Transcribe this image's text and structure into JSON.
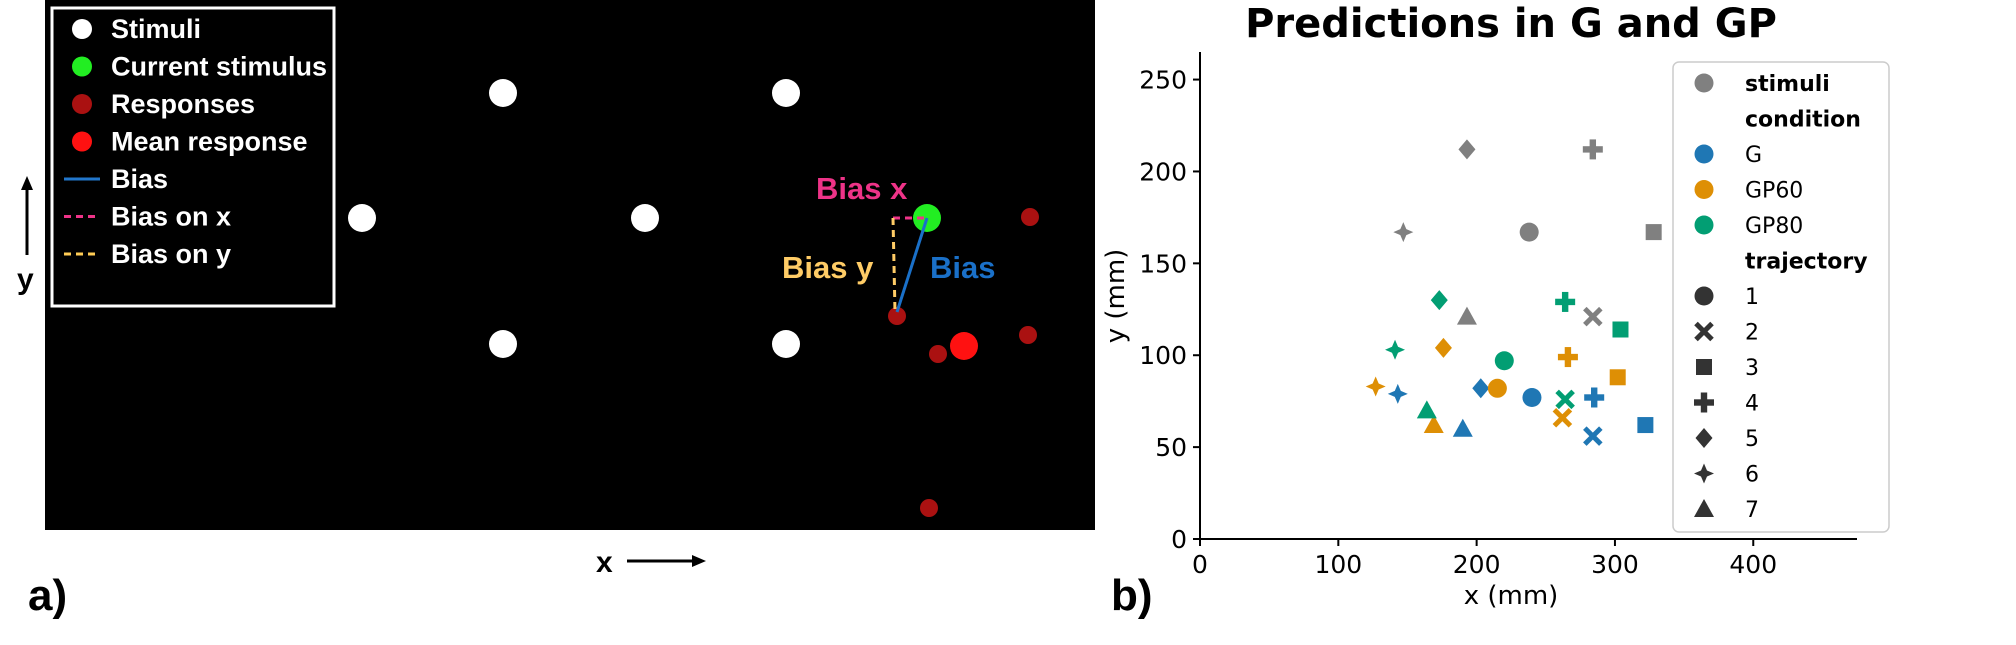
{
  "panel_a": {
    "label": "a)",
    "legend": [
      {
        "label": "Stimuli",
        "kind": "dot",
        "color": "#ffffff"
      },
      {
        "label": "Current stimulus",
        "kind": "dot",
        "color": "#22ee22"
      },
      {
        "label": "Responses",
        "kind": "dot",
        "color": "#aa1111"
      },
      {
        "label": "Mean response",
        "kind": "dot",
        "color": "#ff1111"
      },
      {
        "label": "Bias",
        "kind": "line",
        "color": "#2277cc"
      },
      {
        "label": "Bias on x",
        "kind": "dash",
        "color": "#ee3388"
      },
      {
        "label": "Bias on y",
        "kind": "dash",
        "color": "#ffcc55"
      }
    ],
    "annotations": {
      "bias_x": "Bias x",
      "bias_y": "Bias y",
      "bias": "Bias"
    },
    "axis_x": "x",
    "axis_y": "y",
    "colors": {
      "background": "#000000",
      "bias_x": "#ee3388",
      "bias_y": "#ffcc66",
      "bias": "#1a70c8"
    }
  },
  "panel_b": {
    "label": "b)"
  },
  "chart_data": {
    "type": "scatter",
    "title": "Predictions in G and GP",
    "xlabel": "x (mm)",
    "ylabel": "y (mm)",
    "xlim": [
      0,
      475
    ],
    "ylim": [
      0,
      265
    ],
    "xticks": [
      0,
      100,
      200,
      300,
      400
    ],
    "yticks": [
      0,
      50,
      100,
      150,
      200,
      250
    ],
    "grid": false,
    "legend_position": "top-right",
    "legend": {
      "stimuli_header": "stimuli",
      "condition_header": "condition",
      "conditions": [
        {
          "name": "G",
          "color": "#1f77b4"
        },
        {
          "name": "GP60",
          "color": "#de8f05"
        },
        {
          "name": "GP80",
          "color": "#029e73"
        }
      ],
      "stimuli_color": "#808080",
      "trajectory_header": "trajectory",
      "trajectories": [
        {
          "name": "1",
          "marker": "circle"
        },
        {
          "name": "2",
          "marker": "x"
        },
        {
          "name": "3",
          "marker": "square"
        },
        {
          "name": "4",
          "marker": "plus"
        },
        {
          "name": "5",
          "marker": "diamond"
        },
        {
          "name": "6",
          "marker": "star4"
        },
        {
          "name": "7",
          "marker": "triangle"
        }
      ]
    },
    "series": [
      {
        "group": "stimuli",
        "points": [
          {
            "trajectory": "1",
            "x": 238,
            "y": 167
          },
          {
            "trajectory": "2",
            "x": 284,
            "y": 121
          },
          {
            "trajectory": "3",
            "x": 328,
            "y": 167
          },
          {
            "trajectory": "4",
            "x": 284,
            "y": 212
          },
          {
            "trajectory": "5",
            "x": 193,
            "y": 212
          },
          {
            "trajectory": "6",
            "x": 147,
            "y": 167
          },
          {
            "trajectory": "7",
            "x": 193,
            "y": 121
          }
        ]
      },
      {
        "group": "G",
        "points": [
          {
            "trajectory": "1",
            "x": 240,
            "y": 77
          },
          {
            "trajectory": "2",
            "x": 284,
            "y": 56
          },
          {
            "trajectory": "3",
            "x": 322,
            "y": 62
          },
          {
            "trajectory": "4",
            "x": 285,
            "y": 77
          },
          {
            "trajectory": "5",
            "x": 203,
            "y": 82
          },
          {
            "trajectory": "6",
            "x": 143,
            "y": 79
          },
          {
            "trajectory": "7",
            "x": 190,
            "y": 60
          }
        ]
      },
      {
        "group": "GP60",
        "points": [
          {
            "trajectory": "1",
            "x": 215,
            "y": 82
          },
          {
            "trajectory": "2",
            "x": 262,
            "y": 66
          },
          {
            "trajectory": "3",
            "x": 302,
            "y": 88
          },
          {
            "trajectory": "4",
            "x": 266,
            "y": 99
          },
          {
            "trajectory": "5",
            "x": 176,
            "y": 104
          },
          {
            "trajectory": "6",
            "x": 127,
            "y": 83
          },
          {
            "trajectory": "7",
            "x": 169,
            "y": 62
          }
        ]
      },
      {
        "group": "GP80",
        "points": [
          {
            "trajectory": "1",
            "x": 220,
            "y": 97
          },
          {
            "trajectory": "2",
            "x": 264,
            "y": 76
          },
          {
            "trajectory": "3",
            "x": 304,
            "y": 114
          },
          {
            "trajectory": "4",
            "x": 264,
            "y": 129
          },
          {
            "trajectory": "5",
            "x": 173,
            "y": 130
          },
          {
            "trajectory": "6",
            "x": 141,
            "y": 103
          },
          {
            "trajectory": "7",
            "x": 164,
            "y": 70
          }
        ]
      }
    ]
  }
}
